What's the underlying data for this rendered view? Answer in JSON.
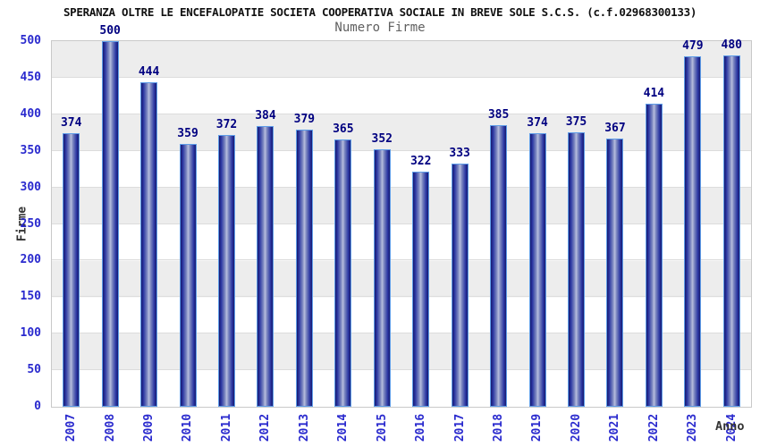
{
  "chart_data": {
    "type": "bar",
    "title": "SPERANZA OLTRE LE ENCEFALOPATIE SOCIETA COOPERATIVA SOCIALE IN BREVE SOLE S.C.S. (c.f.02968300133)",
    "subtitle": "Numero Firme",
    "xlabel": "Anno",
    "ylabel": "Firme",
    "categories": [
      "2007",
      "2008",
      "2009",
      "2010",
      "2011",
      "2012",
      "2013",
      "2014",
      "2015",
      "2016",
      "2017",
      "2018",
      "2019",
      "2020",
      "2021",
      "2022",
      "2023",
      "2024"
    ],
    "values": [
      374,
      500,
      444,
      359,
      372,
      384,
      379,
      365,
      352,
      322,
      333,
      385,
      374,
      375,
      367,
      414,
      479,
      480
    ],
    "ylim": [
      0,
      500
    ],
    "ytick_step": 50,
    "yticks": [
      0,
      50,
      100,
      150,
      200,
      250,
      300,
      350,
      400,
      450,
      500
    ],
    "grid": "horizontal alternating bands, gray topmost",
    "legend": "none",
    "colors": {
      "bar_edge": "#171a6e",
      "bar_mid": "#2a35a2",
      "bar_highlight": "#b7bede",
      "bar_outline": "#5f9de8",
      "value_label": "#000080",
      "tick_label": "#2a2ace",
      "axis_title": "#333333",
      "band_gray": "#ededed",
      "band_white": "#ffffff",
      "gridline": "#dcdcdc",
      "plot_border": "#c9c9c9",
      "title": "#111111",
      "subtitle": "#606060"
    }
  }
}
